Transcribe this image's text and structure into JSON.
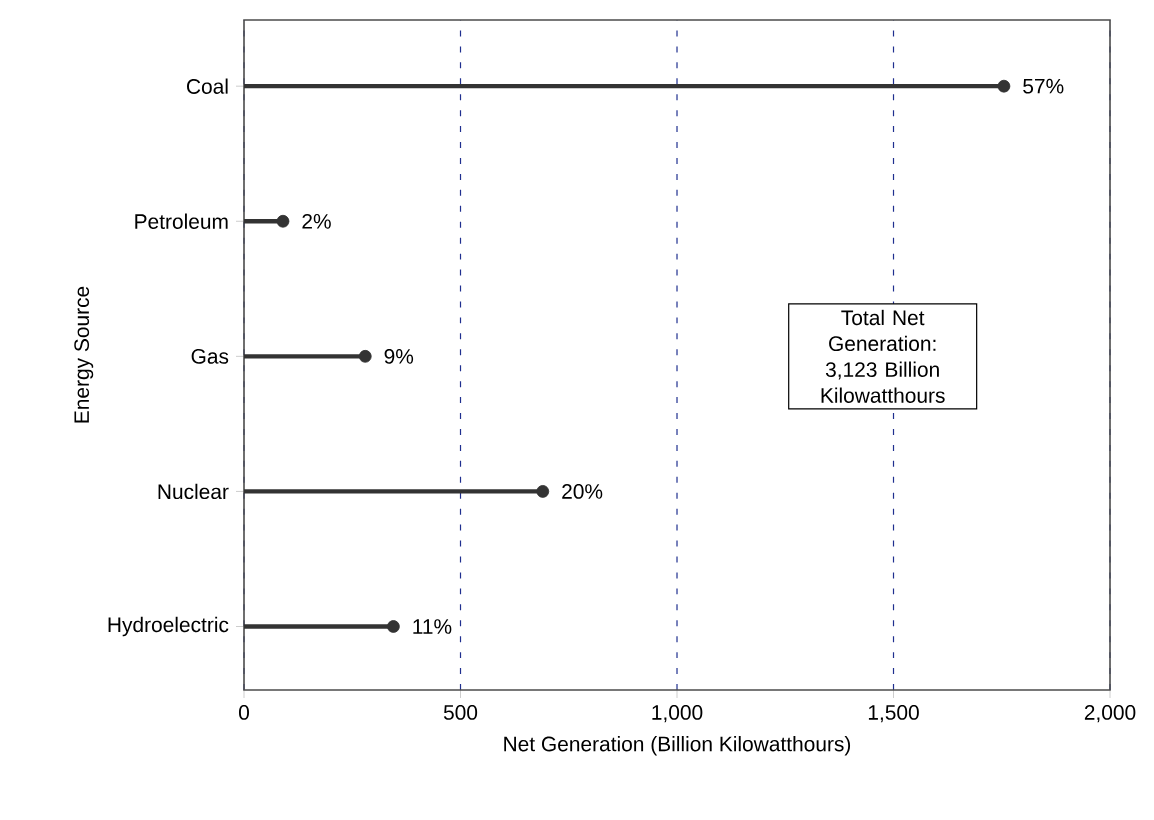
{
  "chart_data": {
    "type": "lollipop",
    "orientation": "horizontal",
    "xlabel": "Net Generation (Billion Kilowatthours)",
    "ylabel": "Energy Source",
    "categories": [
      "Coal",
      "Petroleum",
      "Gas",
      "Nuclear",
      "Hydroelectric"
    ],
    "values": [
      1755,
      90,
      280,
      690,
      345
    ],
    "color": "#333333",
    "marker": "circle",
    "xlim": [
      0,
      2000
    ],
    "xticks": [
      {
        "value": 0,
        "label": "0"
      },
      {
        "value": 500,
        "label": "500"
      },
      {
        "value": 1000,
        "label": "1,000"
      },
      {
        "value": 1500,
        "label": "1,500"
      },
      {
        "value": 2000,
        "label": "2,000"
      }
    ],
    "grid": "x",
    "annotations": [
      {
        "text": "57%",
        "x": 1755,
        "y": "Coal"
      },
      {
        "text": "2%",
        "x": 90,
        "y": "Petroleum"
      },
      {
        "text": "9%",
        "x": 280,
        "y": "Gas"
      },
      {
        "text": "20%",
        "x": 690,
        "y": "Nuclear"
      },
      {
        "text": "11%",
        "x": 345,
        "y": "Hydroelectric"
      },
      "Total Net Generation: 3,123 Billion Kilowatthours"
    ]
  }
}
